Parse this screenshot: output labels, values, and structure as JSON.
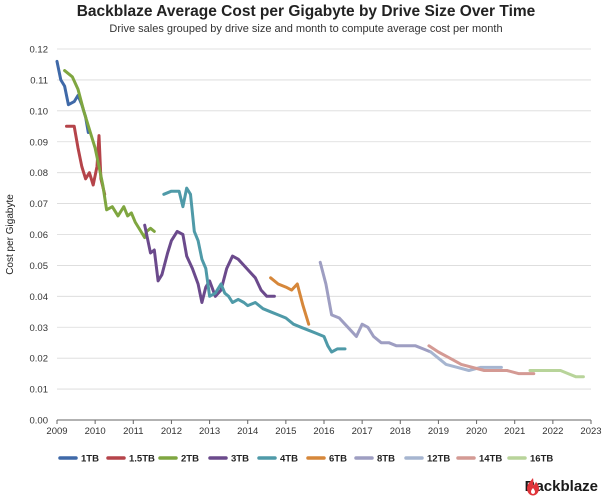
{
  "chart_data": {
    "type": "line",
    "title": "Backblaze Average Cost per Gigabyte by Drive Size Over Time",
    "subtitle": "Drive sales grouped by drive size and month to compute average cost per month",
    "ylabel": "Cost per Gigabyte",
    "xlabel": "",
    "xlim": [
      2009,
      2023
    ],
    "ylim": [
      0,
      0.12
    ],
    "grid": "horizontal",
    "legend_position": "bottom",
    "x_ticks": [
      "2009",
      "2010",
      "2011",
      "2012",
      "2013",
      "2014",
      "2015",
      "2016",
      "2017",
      "2018",
      "2019",
      "2020",
      "2021",
      "2022",
      "2023"
    ],
    "y_ticks": [
      "0.00",
      "0.01",
      "0.02",
      "0.03",
      "0.04",
      "0.05",
      "0.06",
      "0.07",
      "0.08",
      "0.09",
      "0.10",
      "0.11",
      "0.12"
    ],
    "series": [
      {
        "name": "1TB",
        "color": "#3f69a8",
        "points": [
          [
            2009.0,
            0.116
          ],
          [
            2009.1,
            0.11
          ],
          [
            2009.2,
            0.108
          ],
          [
            2009.3,
            0.102
          ],
          [
            2009.45,
            0.103
          ],
          [
            2009.55,
            0.105
          ],
          [
            2009.65,
            0.102
          ],
          [
            2009.75,
            0.098
          ],
          [
            2009.82,
            0.093
          ]
        ]
      },
      {
        "name": "1.5TB",
        "color": "#b5444a",
        "points": [
          [
            2009.25,
            0.095
          ],
          [
            2009.45,
            0.095
          ],
          [
            2009.55,
            0.088
          ],
          [
            2009.65,
            0.082
          ],
          [
            2009.75,
            0.078
          ],
          [
            2009.85,
            0.08
          ],
          [
            2009.95,
            0.076
          ],
          [
            2010.05,
            0.082
          ],
          [
            2010.1,
            0.092
          ],
          [
            2010.15,
            0.078
          ],
          [
            2010.25,
            0.073
          ]
        ]
      },
      {
        "name": "2TB",
        "color": "#7fa640",
        "points": [
          [
            2009.2,
            0.113
          ],
          [
            2009.4,
            0.111
          ],
          [
            2009.55,
            0.107
          ],
          [
            2009.7,
            0.1
          ],
          [
            2009.85,
            0.094
          ],
          [
            2010.0,
            0.088
          ],
          [
            2010.1,
            0.082
          ],
          [
            2010.2,
            0.076
          ],
          [
            2010.3,
            0.068
          ],
          [
            2010.45,
            0.069
          ],
          [
            2010.6,
            0.066
          ],
          [
            2010.75,
            0.069
          ],
          [
            2010.85,
            0.066
          ],
          [
            2010.95,
            0.067
          ],
          [
            2011.05,
            0.064
          ],
          [
            2011.2,
            0.061
          ],
          [
            2011.3,
            0.059
          ],
          [
            2011.35,
            0.061
          ],
          [
            2011.45,
            0.062
          ],
          [
            2011.55,
            0.061
          ]
        ]
      },
      {
        "name": "3TB",
        "color": "#6b4a8c",
        "points": [
          [
            2011.3,
            0.063
          ],
          [
            2011.45,
            0.054
          ],
          [
            2011.55,
            0.055
          ],
          [
            2011.65,
            0.045
          ],
          [
            2011.75,
            0.047
          ],
          [
            2011.9,
            0.054
          ],
          [
            2012.0,
            0.058
          ],
          [
            2012.15,
            0.061
          ],
          [
            2012.3,
            0.06
          ],
          [
            2012.4,
            0.053
          ],
          [
            2012.55,
            0.049
          ],
          [
            2012.7,
            0.044
          ],
          [
            2012.8,
            0.038
          ],
          [
            2012.9,
            0.043
          ],
          [
            2013.0,
            0.045
          ],
          [
            2013.15,
            0.04
          ],
          [
            2013.3,
            0.042
          ],
          [
            2013.45,
            0.049
          ],
          [
            2013.6,
            0.053
          ],
          [
            2013.75,
            0.052
          ],
          [
            2013.9,
            0.05
          ],
          [
            2014.05,
            0.048
          ],
          [
            2014.2,
            0.046
          ],
          [
            2014.35,
            0.042
          ],
          [
            2014.5,
            0.04
          ],
          [
            2014.7,
            0.04
          ]
        ]
      },
      {
        "name": "4TB",
        "color": "#4f9aa8",
        "points": [
          [
            2011.8,
            0.073
          ],
          [
            2012.0,
            0.074
          ],
          [
            2012.2,
            0.074
          ],
          [
            2012.3,
            0.069
          ],
          [
            2012.4,
            0.075
          ],
          [
            2012.5,
            0.073
          ],
          [
            2012.6,
            0.061
          ],
          [
            2012.7,
            0.058
          ],
          [
            2012.8,
            0.052
          ],
          [
            2012.9,
            0.049
          ],
          [
            2013.0,
            0.04
          ],
          [
            2013.15,
            0.041
          ],
          [
            2013.3,
            0.044
          ],
          [
            2013.4,
            0.041
          ],
          [
            2013.5,
            0.04
          ],
          [
            2013.6,
            0.038
          ],
          [
            2013.75,
            0.039
          ],
          [
            2013.9,
            0.038
          ],
          [
            2014.0,
            0.037
          ],
          [
            2014.2,
            0.038
          ],
          [
            2014.4,
            0.036
          ],
          [
            2014.6,
            0.035
          ],
          [
            2014.8,
            0.034
          ],
          [
            2015.0,
            0.033
          ],
          [
            2015.2,
            0.031
          ],
          [
            2015.4,
            0.03
          ],
          [
            2015.6,
            0.029
          ],
          [
            2015.8,
            0.028
          ],
          [
            2016.0,
            0.027
          ],
          [
            2016.1,
            0.024
          ],
          [
            2016.2,
            0.022
          ],
          [
            2016.35,
            0.023
          ],
          [
            2016.55,
            0.023
          ]
        ]
      },
      {
        "name": "6TB",
        "color": "#d6873a",
        "points": [
          [
            2014.6,
            0.046
          ],
          [
            2014.8,
            0.044
          ],
          [
            2015.0,
            0.043
          ],
          [
            2015.15,
            0.042
          ],
          [
            2015.3,
            0.044
          ],
          [
            2015.45,
            0.037
          ],
          [
            2015.6,
            0.031
          ]
        ]
      },
      {
        "name": "8TB",
        "color": "#9e9ec2",
        "points": [
          [
            2015.9,
            0.051
          ],
          [
            2016.05,
            0.044
          ],
          [
            2016.2,
            0.034
          ],
          [
            2016.4,
            0.033
          ],
          [
            2016.55,
            0.031
          ],
          [
            2016.7,
            0.029
          ],
          [
            2016.85,
            0.027
          ],
          [
            2017.0,
            0.031
          ],
          [
            2017.15,
            0.03
          ],
          [
            2017.3,
            0.027
          ],
          [
            2017.5,
            0.025
          ],
          [
            2017.7,
            0.025
          ],
          [
            2017.9,
            0.024
          ],
          [
            2018.1,
            0.024
          ],
          [
            2018.4,
            0.024
          ],
          [
            2018.6,
            0.023
          ],
          [
            2018.8,
            0.022
          ]
        ]
      },
      {
        "name": "12TB",
        "color": "#a6b5d0",
        "points": [
          [
            2018.8,
            0.022
          ],
          [
            2019.0,
            0.02
          ],
          [
            2019.2,
            0.018
          ],
          [
            2019.5,
            0.017
          ],
          [
            2019.8,
            0.016
          ],
          [
            2020.1,
            0.017
          ],
          [
            2020.4,
            0.017
          ],
          [
            2020.65,
            0.017
          ]
        ]
      },
      {
        "name": "14TB",
        "color": "#d49a94",
        "points": [
          [
            2018.75,
            0.024
          ],
          [
            2019.0,
            0.022
          ],
          [
            2019.3,
            0.02
          ],
          [
            2019.6,
            0.018
          ],
          [
            2019.9,
            0.017
          ],
          [
            2020.2,
            0.016
          ],
          [
            2020.5,
            0.016
          ],
          [
            2020.8,
            0.016
          ],
          [
            2021.1,
            0.015
          ],
          [
            2021.35,
            0.015
          ],
          [
            2021.5,
            0.015
          ]
        ]
      },
      {
        "name": "16TB",
        "color": "#b8d49a",
        "points": [
          [
            2021.4,
            0.016
          ],
          [
            2021.6,
            0.016
          ],
          [
            2021.8,
            0.016
          ],
          [
            2022.0,
            0.016
          ],
          [
            2022.2,
            0.016
          ],
          [
            2022.4,
            0.015
          ],
          [
            2022.6,
            0.014
          ],
          [
            2022.8,
            0.014
          ]
        ]
      }
    ]
  },
  "brand": {
    "name": "Backblaze"
  }
}
